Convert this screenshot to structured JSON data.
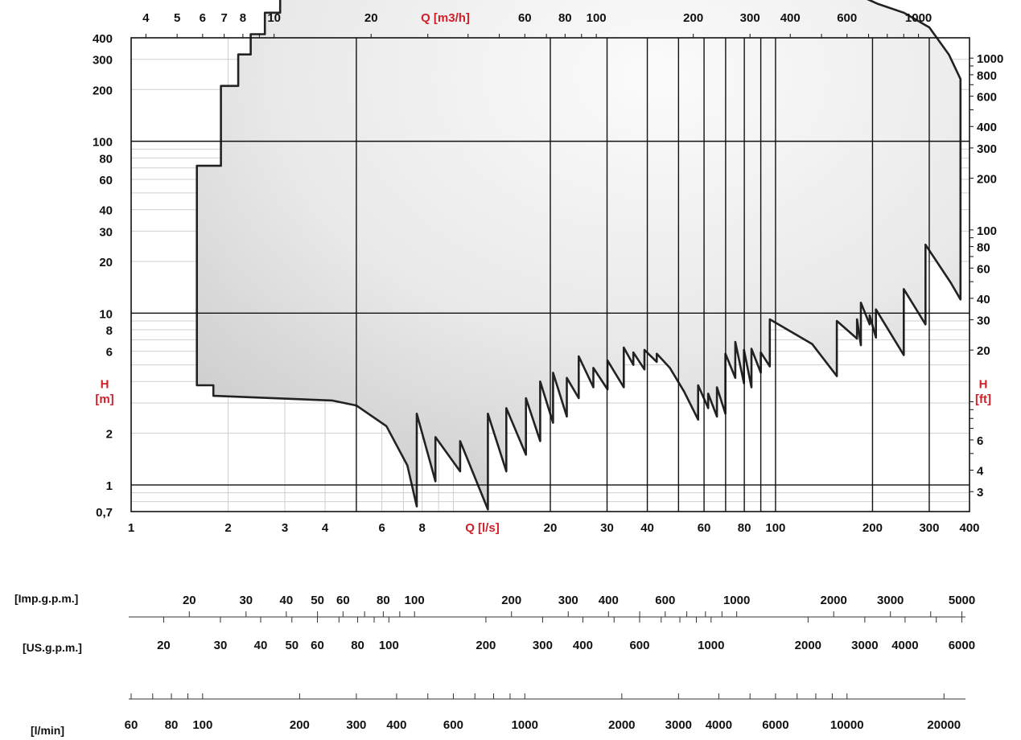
{
  "colors": {
    "accent_red": "#d0202a",
    "curve": "#222222",
    "fill_light": "#fbfbfb",
    "fill_dark": "#c9c9c9",
    "grid_minor": "#cfcfcf",
    "grid_major": "#111111"
  },
  "chart_data": {
    "type": "area",
    "x_scale": "log",
    "y_scale": "log",
    "x_axis": {
      "label": "Q [l/s]",
      "range": [
        1,
        400
      ],
      "ticks": [
        {
          "value": 1,
          "label": "1"
        },
        {
          "value": 2,
          "label": "2"
        },
        {
          "value": 3,
          "label": "3"
        },
        {
          "value": 4,
          "label": "4"
        },
        {
          "value": 6,
          "label": "6"
        },
        {
          "value": 8,
          "label": "8"
        },
        {
          "value": 20,
          "label": "20"
        },
        {
          "value": 30,
          "label": "30"
        },
        {
          "value": 40,
          "label": "40"
        },
        {
          "value": 60,
          "label": "60"
        },
        {
          "value": 80,
          "label": "80"
        },
        {
          "value": 100,
          "label": "100"
        },
        {
          "value": 200,
          "label": "200"
        },
        {
          "value": 300,
          "label": "300"
        },
        {
          "value": 400,
          "label": "400"
        }
      ]
    },
    "x2_axis": {
      "label": "Q [m3/h]",
      "range": [
        3.6,
        1440
      ],
      "ticks": [
        {
          "value": 4,
          "label": "4"
        },
        {
          "value": 5,
          "label": "5"
        },
        {
          "value": 6,
          "label": "6"
        },
        {
          "value": 7,
          "label": "7"
        },
        {
          "value": 8,
          "label": "8"
        },
        {
          "value": 10,
          "label": "10"
        },
        {
          "value": 20,
          "label": "20"
        },
        {
          "value": 60,
          "label": "60"
        },
        {
          "value": 80,
          "label": "80"
        },
        {
          "value": 100,
          "label": "100"
        },
        {
          "value": 200,
          "label": "200"
        },
        {
          "value": 300,
          "label": "300"
        },
        {
          "value": 400,
          "label": "400"
        },
        {
          "value": 600,
          "label": "600"
        },
        {
          "value": 1000,
          "label": "1000"
        }
      ]
    },
    "y_axis": {
      "label_top": "H",
      "label_bottom": "[m]",
      "range": [
        0.7,
        400
      ],
      "ticks": [
        {
          "value": 0.7,
          "label": "0,7"
        },
        {
          "value": 1,
          "label": "1"
        },
        {
          "value": 2,
          "label": "2"
        },
        {
          "value": 6,
          "label": "6"
        },
        {
          "value": 8,
          "label": "8"
        },
        {
          "value": 10,
          "label": "10"
        },
        {
          "value": 20,
          "label": "20"
        },
        {
          "value": 30,
          "label": "30"
        },
        {
          "value": 40,
          "label": "40"
        },
        {
          "value": 60,
          "label": "60"
        },
        {
          "value": 80,
          "label": "80"
        },
        {
          "value": 100,
          "label": "100"
        },
        {
          "value": 200,
          "label": "200"
        },
        {
          "value": 300,
          "label": "300"
        },
        {
          "value": 400,
          "label": "400"
        }
      ]
    },
    "y2_axis": {
      "label_top": "H",
      "label_bottom": "[ft]",
      "ticks": [
        {
          "value": 3,
          "label": "3"
        },
        {
          "value": 4,
          "label": "4"
        },
        {
          "value": 6,
          "label": "6"
        },
        {
          "value": 20,
          "label": "20"
        },
        {
          "value": 30,
          "label": "30"
        },
        {
          "value": 40,
          "label": "40"
        },
        {
          "value": 60,
          "label": "60"
        },
        {
          "value": 80,
          "label": "80"
        },
        {
          "value": 100,
          "label": "100"
        },
        {
          "value": 200,
          "label": "200"
        },
        {
          "value": 300,
          "label": "300"
        },
        {
          "value": 400,
          "label": "400"
        },
        {
          "value": 600,
          "label": "600"
        },
        {
          "value": 800,
          "label": "800"
        },
        {
          "value": 1000,
          "label": "1000"
        }
      ]
    },
    "grid": true,
    "major_lines_x": [
      5,
      20,
      30,
      40,
      50,
      60,
      70,
      80,
      90,
      100,
      200,
      300
    ],
    "major_lines_y": [
      1,
      10,
      100
    ],
    "envelope": [
      [
        1.6,
        72
      ],
      [
        1.6,
        3.8
      ],
      [
        1.8,
        3.8
      ],
      [
        1.8,
        3.3
      ],
      [
        4.2,
        3.1
      ],
      [
        5,
        2.9
      ],
      [
        6.2,
        2.2
      ],
      [
        7.2,
        1.3
      ],
      [
        7.7,
        0.75
      ],
      [
        7.7,
        2.6
      ],
      [
        8.8,
        1.05
      ],
      [
        8.8,
        1.9
      ],
      [
        10.5,
        1.2
      ],
      [
        10.5,
        1.8
      ],
      [
        12.8,
        0.72
      ],
      [
        12.8,
        2.6
      ],
      [
        14.6,
        1.2
      ],
      [
        14.6,
        2.8
      ],
      [
        16.8,
        1.5
      ],
      [
        16.8,
        3.2
      ],
      [
        18.6,
        1.8
      ],
      [
        18.6,
        4.0
      ],
      [
        20.4,
        2.3
      ],
      [
        20.4,
        4.5
      ],
      [
        22.5,
        2.5
      ],
      [
        22.5,
        4.2
      ],
      [
        24.5,
        3.2
      ],
      [
        24.5,
        5.6
      ],
      [
        27.2,
        3.7
      ],
      [
        27.2,
        4.8
      ],
      [
        30.1,
        3.6
      ],
      [
        30.1,
        5.3
      ],
      [
        33.8,
        3.7
      ],
      [
        33.8,
        6.3
      ],
      [
        36.2,
        5.0
      ],
      [
        36.2,
        5.9
      ],
      [
        39.2,
        4.7
      ],
      [
        39.2,
        6.1
      ],
      [
        42.8,
        5.2
      ],
      [
        42.8,
        5.8
      ],
      [
        47,
        4.8
      ],
      [
        52,
        3.5
      ],
      [
        57.5,
        2.4
      ],
      [
        57.5,
        3.8
      ],
      [
        61.8,
        2.8
      ],
      [
        61.8,
        3.4
      ],
      [
        65.8,
        2.5
      ],
      [
        65.8,
        3.7
      ],
      [
        69.9,
        2.6
      ],
      [
        69.9,
        5.8
      ],
      [
        75,
        4.2
      ],
      [
        75,
        6.8
      ],
      [
        79.8,
        3.9
      ],
      [
        79.8,
        6.1
      ],
      [
        84.2,
        3.7
      ],
      [
        84.2,
        6.2
      ],
      [
        90,
        4.5
      ],
      [
        90,
        5.9
      ],
      [
        96,
        4.9
      ],
      [
        96,
        9.2
      ],
      [
        130,
        6.6
      ],
      [
        155,
        4.3
      ],
      [
        155,
        9.0
      ],
      [
        179,
        7.1
      ],
      [
        179,
        9.2
      ],
      [
        184,
        6.5
      ],
      [
        184,
        11.5
      ],
      [
        196,
        8.6
      ],
      [
        196,
        9.7
      ],
      [
        205,
        7.2
      ],
      [
        205,
        10.5
      ],
      [
        250,
        5.7
      ],
      [
        250,
        13.8
      ],
      [
        292,
        8.6
      ],
      [
        292,
        25
      ],
      [
        350,
        15
      ],
      [
        375,
        12
      ],
      [
        375,
        230
      ],
      [
        345,
        320
      ],
      [
        300,
        460
      ],
      [
        250,
        560
      ],
      [
        208,
        630
      ],
      [
        190,
        680
      ],
      [
        150,
        790
      ],
      [
        120,
        870
      ],
      [
        90,
        900
      ],
      [
        60,
        960
      ],
      [
        40,
        1000
      ],
      [
        25,
        1010
      ],
      [
        16,
        1000
      ],
      [
        12,
        990
      ],
      [
        10.5,
        970
      ],
      [
        8.8,
        960
      ],
      [
        8.8,
        940
      ],
      [
        7.5,
        940
      ],
      [
        7.5,
        900
      ],
      [
        6.5,
        900
      ],
      [
        6.5,
        870
      ],
      [
        5.8,
        870
      ],
      [
        5.8,
        800
      ],
      [
        5.0,
        800
      ],
      [
        5.0,
        750
      ],
      [
        3.0,
        760
      ],
      [
        2.9,
        720
      ],
      [
        2.9,
        560
      ],
      [
        2.6,
        560
      ],
      [
        2.6,
        420
      ],
      [
        2.35,
        420
      ],
      [
        2.35,
        320
      ],
      [
        2.15,
        320
      ],
      [
        2.15,
        210
      ],
      [
        1.9,
        210
      ],
      [
        1.9,
        72
      ]
    ]
  },
  "lower_scales": {
    "imp_gpm": {
      "label": "[Imp.g.p.m.]",
      "tick_values": [
        20,
        30,
        40,
        50,
        60,
        70,
        80,
        90,
        100,
        200,
        300,
        400,
        500,
        600,
        700,
        800,
        900,
        1000,
        2000,
        3000,
        4000,
        5000
      ],
      "labels": [
        {
          "value": 20,
          "text": "20"
        },
        {
          "value": 30,
          "text": "30"
        },
        {
          "value": 40,
          "text": "40"
        },
        {
          "value": 50,
          "text": "50"
        },
        {
          "value": 60,
          "text": "60"
        },
        {
          "value": 80,
          "text": "80"
        },
        {
          "value": 100,
          "text": "100"
        },
        {
          "value": 200,
          "text": "200"
        },
        {
          "value": 300,
          "text": "300"
        },
        {
          "value": 400,
          "text": "400"
        },
        {
          "value": 600,
          "text": "600"
        },
        {
          "value": 1000,
          "text": "1000"
        },
        {
          "value": 2000,
          "text": "2000"
        },
        {
          "value": 3000,
          "text": "3000"
        },
        {
          "value": 5000,
          "text": "5000"
        }
      ]
    },
    "us_gpm": {
      "label": "[US.g.p.m.]",
      "tick_values": [
        20,
        30,
        40,
        50,
        60,
        70,
        80,
        90,
        100,
        200,
        300,
        400,
        500,
        600,
        700,
        800,
        900,
        1000,
        2000,
        3000,
        4000,
        5000,
        6000
      ],
      "labels": [
        {
          "value": 20,
          "text": "20"
        },
        {
          "value": 30,
          "text": "30"
        },
        {
          "value": 40,
          "text": "40"
        },
        {
          "value": 50,
          "text": "50"
        },
        {
          "value": 60,
          "text": "60"
        },
        {
          "value": 80,
          "text": "80"
        },
        {
          "value": 100,
          "text": "100"
        },
        {
          "value": 200,
          "text": "200"
        },
        {
          "value": 300,
          "text": "300"
        },
        {
          "value": 400,
          "text": "400"
        },
        {
          "value": 600,
          "text": "600"
        },
        {
          "value": 1000,
          "text": "1000"
        },
        {
          "value": 2000,
          "text": "2000"
        },
        {
          "value": 3000,
          "text": "3000"
        },
        {
          "value": 4000,
          "text": "4000"
        },
        {
          "value": 6000,
          "text": "6000"
        }
      ]
    },
    "l_min": {
      "label": "[l/min]",
      "tick_values": [
        60,
        70,
        80,
        90,
        100,
        200,
        300,
        400,
        500,
        600,
        700,
        800,
        900,
        1000,
        2000,
        3000,
        4000,
        5000,
        6000,
        7000,
        8000,
        9000,
        10000,
        20000
      ],
      "labels": [
        {
          "value": 60,
          "text": "60"
        },
        {
          "value": 80,
          "text": "80"
        },
        {
          "value": 100,
          "text": "100"
        },
        {
          "value": 200,
          "text": "200"
        },
        {
          "value": 300,
          "text": "300"
        },
        {
          "value": 400,
          "text": "400"
        },
        {
          "value": 600,
          "text": "600"
        },
        {
          "value": 1000,
          "text": "1000"
        },
        {
          "value": 2000,
          "text": "2000"
        },
        {
          "value": 3000,
          "text": "3000"
        },
        {
          "value": 4000,
          "text": "4000"
        },
        {
          "value": 6000,
          "text": "6000"
        },
        {
          "value": 10000,
          "text": "10000"
        },
        {
          "value": 20000,
          "text": "20000"
        }
      ]
    }
  }
}
